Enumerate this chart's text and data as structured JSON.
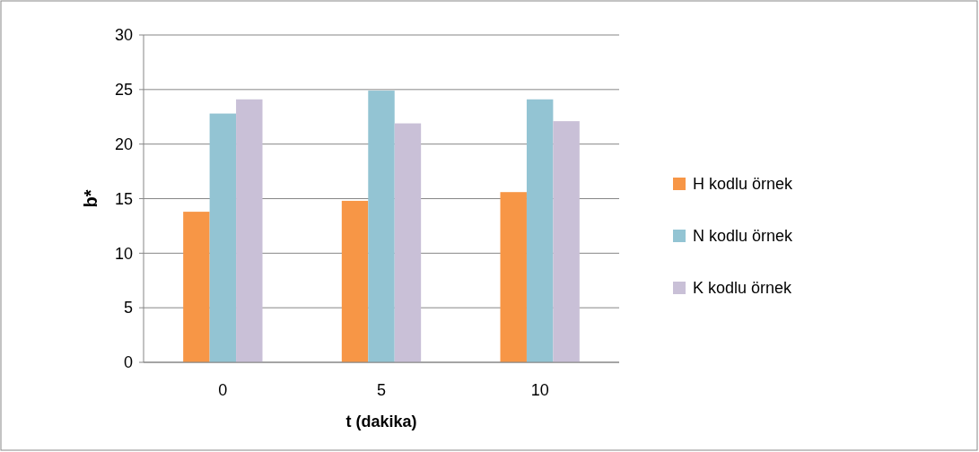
{
  "chart_data": {
    "type": "bar",
    "xlabel": "t (dakika)",
    "ylabel": "b*",
    "categories": [
      "0",
      "5",
      "10"
    ],
    "series": [
      {
        "name": "H kodlu örnek",
        "color": "#f79646",
        "values": [
          13.8,
          14.8,
          15.6
        ]
      },
      {
        "name": "N kodlu örnek",
        "color": "#93c4d3",
        "values": [
          22.8,
          24.9,
          24.1
        ]
      },
      {
        "name": "K kodlu örnek",
        "color": "#c9c0d7",
        "values": [
          24.1,
          21.9,
          22.1
        ]
      }
    ],
    "ylim": [
      0,
      30
    ],
    "yticks": [
      0,
      5,
      10,
      15,
      20,
      25,
      30
    ],
    "grid": "y",
    "legend": "right"
  }
}
